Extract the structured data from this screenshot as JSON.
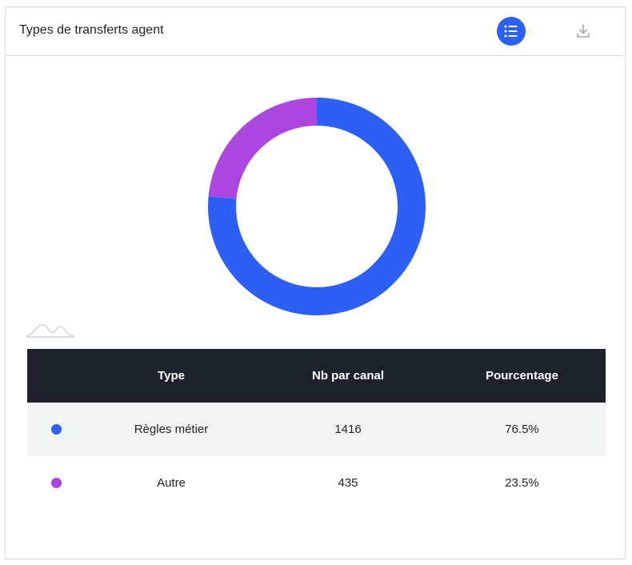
{
  "header": {
    "title": "Types de transferts agent",
    "list_icon": "list-icon",
    "download_icon": "download-icon"
  },
  "colors": {
    "accent": "#2b5ff5",
    "series_1": "#2b5ff5",
    "series_2": "#ad46e0",
    "table_header_bg": "#1e222c"
  },
  "chart_data": {
    "type": "pie",
    "categories": [
      "Règles métier",
      "Autre"
    ],
    "values": [
      1416,
      435
    ],
    "percentages": [
      76.5,
      23.5
    ],
    "colors": [
      "#2b5ff5",
      "#ad46e0"
    ],
    "donut": true,
    "start_angle": "top, clockwise"
  },
  "table": {
    "headers": [
      "Type",
      "Nb par canal",
      "Pourcentage"
    ],
    "rows": [
      {
        "type": "Règles métier",
        "count": "1416",
        "percent": "76.5%",
        "color": "#2b5ff5"
      },
      {
        "type": "Autre",
        "count": "435",
        "percent": "23.5%",
        "color": "#ad46e0"
      }
    ]
  }
}
